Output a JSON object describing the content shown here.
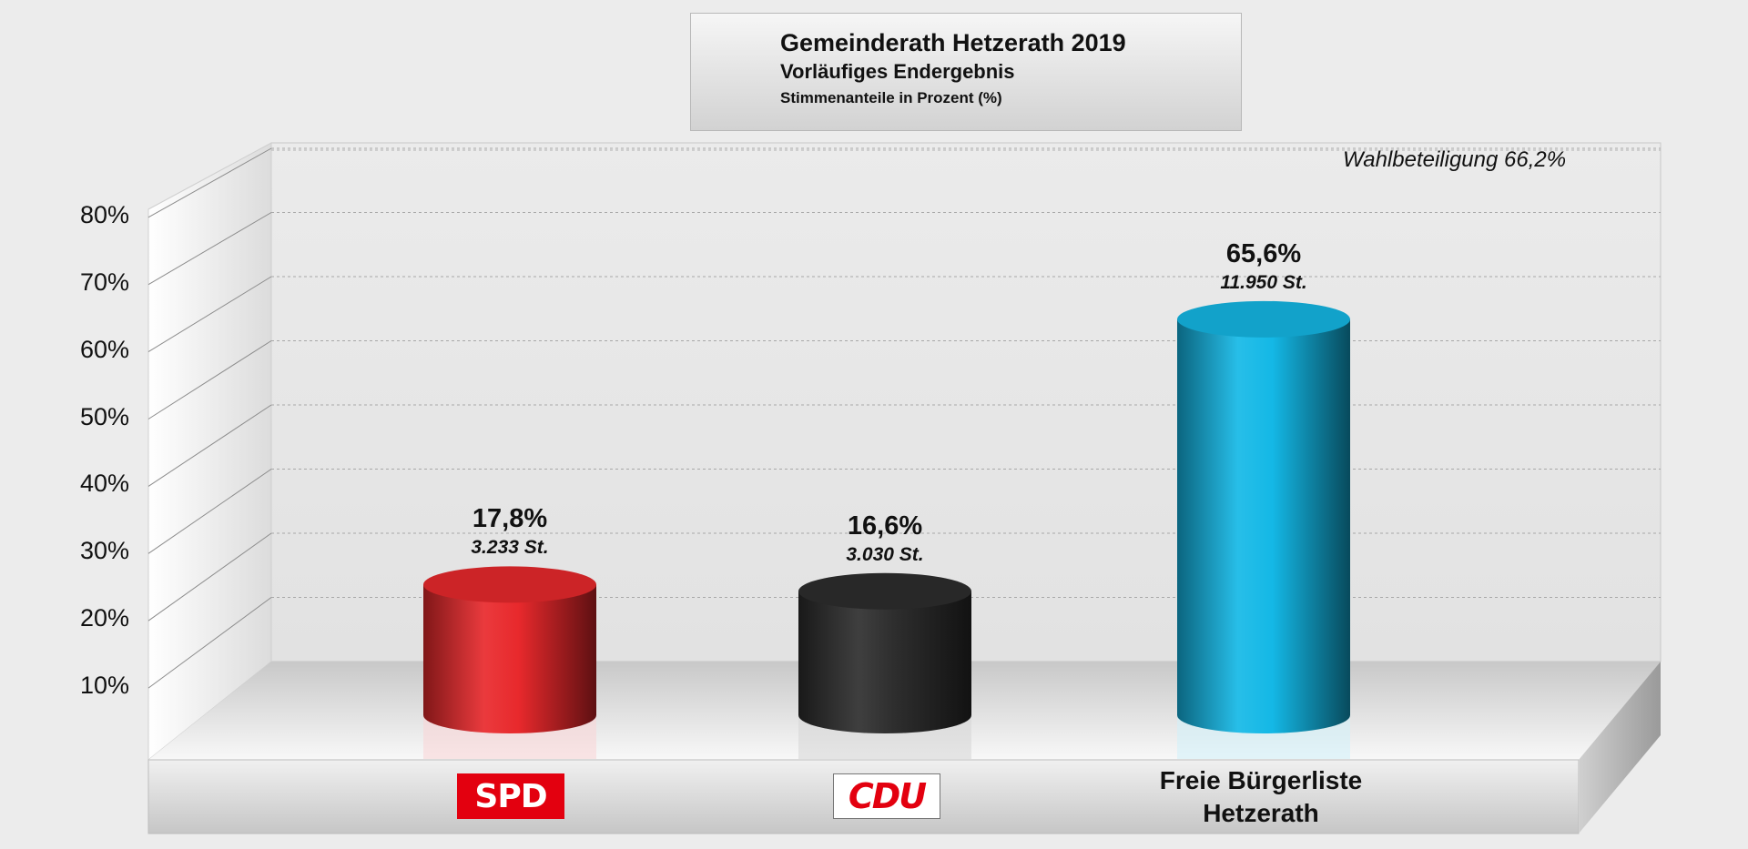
{
  "title": {
    "main": "Gemeinderath Hetzerath 2019",
    "sub": "Vorläufiges Endergebnis",
    "unit": "Stimmenanteile in Prozent (%)"
  },
  "turnout_label": "Wahlbeteiligung 66,2%",
  "chart_data": {
    "type": "bar",
    "categories": [
      "SPD",
      "CDU",
      "Freie Bürgerliste Hetzerath"
    ],
    "values": [
      17.8,
      16.6,
      65.6
    ],
    "value_labels": [
      "17,8%",
      "16,6%",
      "65,6%"
    ],
    "vote_labels": [
      "3.233 St.",
      "3.030 St.",
      "11.950 St."
    ],
    "bar_colors": [
      "#e8292c",
      "#2e2e2e",
      "#14b8e6"
    ],
    "yticks": [
      "10%",
      "20%",
      "30%",
      "40%",
      "50%",
      "60%",
      "70%",
      "80%"
    ],
    "ylim": [
      0,
      80
    ],
    "grid": true,
    "style": "3d-cylinder"
  },
  "logos": {
    "spd": "SPD",
    "cdu": "CDU"
  },
  "category_text": {
    "line1": "Freie Bürgerliste",
    "line2": "Hetzerath"
  }
}
